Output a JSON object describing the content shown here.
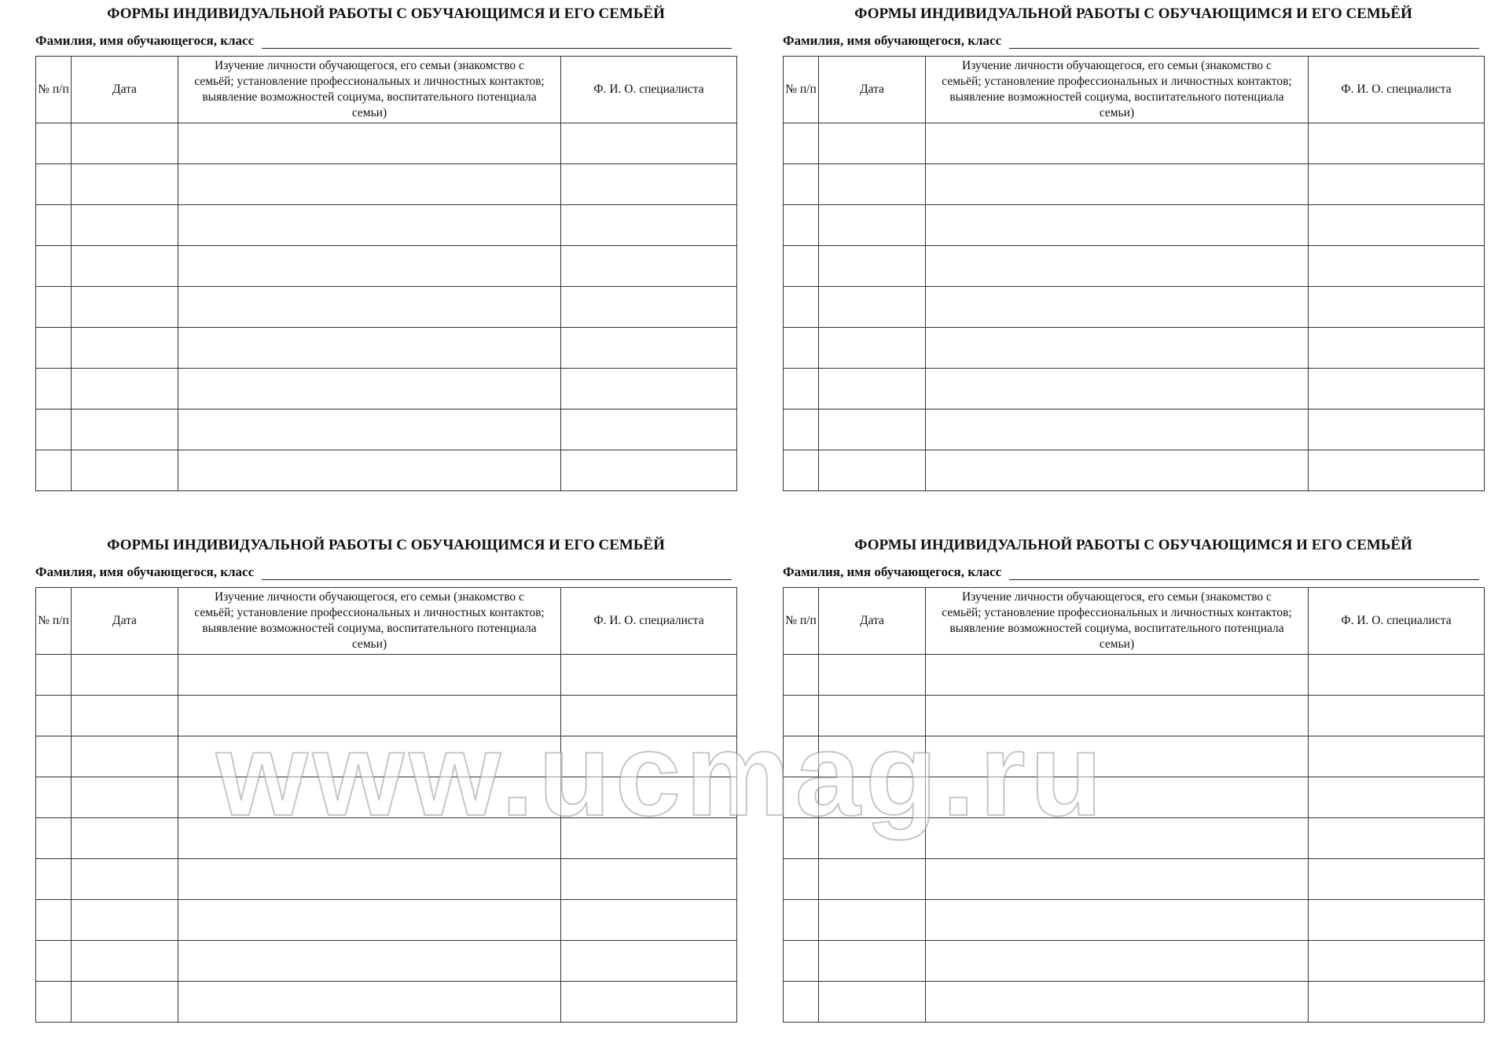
{
  "forms": [
    {
      "title": "ФОРМЫ ИНДИВИДУАЛЬНОЙ РАБОТЫ С ОБУЧАЮЩИМСЯ И ЕГО СЕМЬЁЙ",
      "name_label": "Фамилия, имя обучающегося, класс",
      "columns": [
        "№ п/п",
        "Дата",
        "Изучение личности обучающегося, его семьи (знакомство с семьёй; установление профессиональных и личностных контактов; выявление возможностей социума, воспитательного потенциала семьи)",
        "Ф. И. О. специалиста"
      ],
      "empty_rows": 9
    },
    {
      "title": "ФОРМЫ ИНДИВИДУАЛЬНОЙ РАБОТЫ С ОБУЧАЮЩИМСЯ И ЕГО СЕМЬЁЙ",
      "name_label": "Фамилия, имя обучающегося, класс",
      "columns": [
        "№ п/п",
        "Дата",
        "Изучение личности обучающегося, его семьи (знакомство с семьёй; установление профессиональных и личностных контактов; выявление возможностей социума, воспитательного потенциала семьи)",
        "Ф. И. О. специалиста"
      ],
      "empty_rows": 9
    },
    {
      "title": "ФОРМЫ ИНДИВИДУАЛЬНОЙ РАБОТЫ С ОБУЧАЮЩИМСЯ И ЕГО СЕМЬЁЙ",
      "name_label": "Фамилия, имя обучающегося, класс",
      "columns": [
        "№ п/п",
        "Дата",
        "Изучение личности обучающегося, его семьи (знакомство с семьёй; установление профессиональных и личностных контактов; выявление возможностей социума, воспитательного потенциала семьи)",
        "Ф. И. О. специалиста"
      ],
      "empty_rows": 9
    },
    {
      "title": "ФОРМЫ ИНДИВИДУАЛЬНОЙ РАБОТЫ С ОБУЧАЮЩИМСЯ И ЕГО СЕМЬЁЙ",
      "name_label": "Фамилия, имя обучающегося, класс",
      "columns": [
        "№ п/п",
        "Дата",
        "Изучение личности обучающегося, его семьи (знакомство с семьёй; установление профессиональных и личностных контактов; выявление возможностей социума, воспитательного потенциала семьи)",
        "Ф. И. О. специалиста"
      ],
      "empty_rows": 9
    }
  ],
  "watermark": "www.ucmag.ru"
}
